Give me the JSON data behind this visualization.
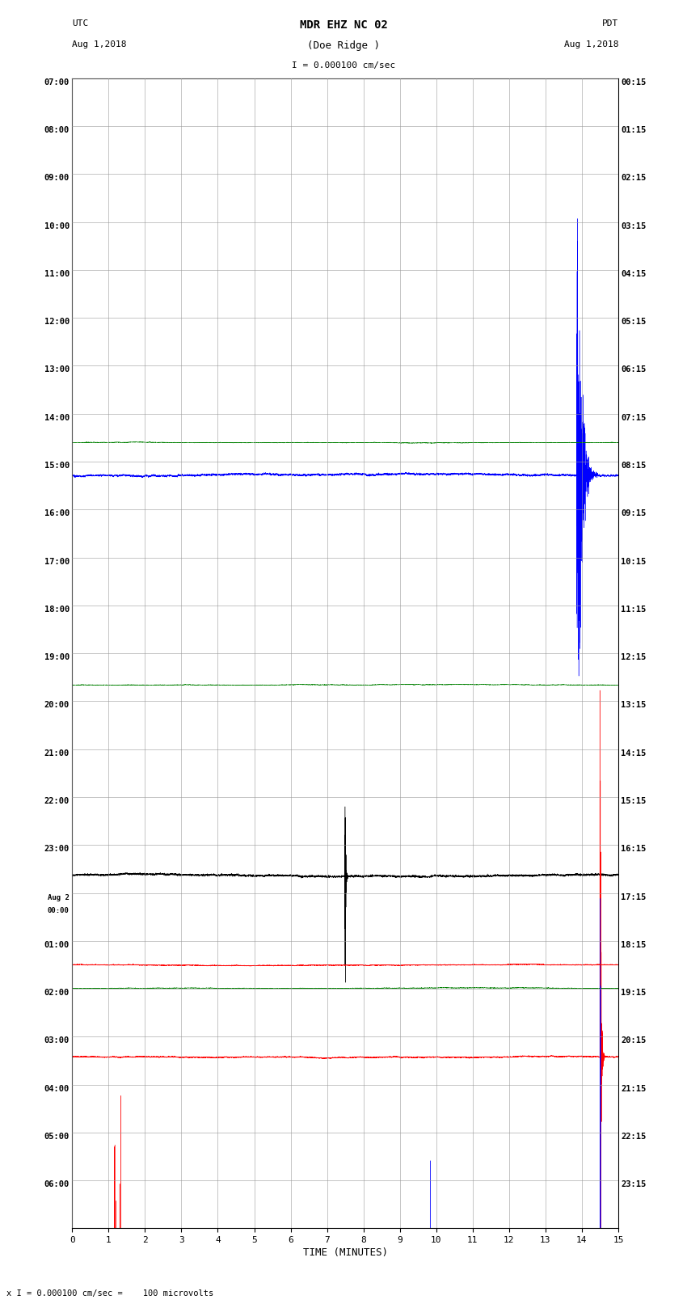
{
  "title_line1": "MDR EHZ NC 02",
  "title_line2": "(Doe Ridge )",
  "scale_label": "I = 0.000100 cm/sec",
  "left_label_line1": "UTC",
  "left_label_line2": "Aug 1,2018",
  "right_label_line1": "PDT",
  "right_label_line2": "Aug 1,2018",
  "bottom_note": "x I = 0.000100 cm/sec =    100 microvolts",
  "xlabel": "TIME (MINUTES)",
  "left_times": [
    "07:00",
    "08:00",
    "09:00",
    "10:00",
    "11:00",
    "12:00",
    "13:00",
    "14:00",
    "15:00",
    "16:00",
    "17:00",
    "18:00",
    "19:00",
    "20:00",
    "21:00",
    "22:00",
    "23:00",
    "Aug 2\n00:00",
    "01:00",
    "02:00",
    "03:00",
    "04:00",
    "05:00",
    "06:00"
  ],
  "right_times": [
    "00:15",
    "01:15",
    "02:15",
    "03:15",
    "04:15",
    "05:15",
    "06:15",
    "07:15",
    "08:15",
    "09:15",
    "10:15",
    "11:15",
    "12:15",
    "13:15",
    "14:15",
    "15:15",
    "16:15",
    "17:15",
    "18:15",
    "19:15",
    "20:15",
    "21:15",
    "22:15",
    "23:15"
  ],
  "n_rows": 24,
  "n_cols": 4,
  "colors": [
    "black",
    "red",
    "blue",
    "green"
  ],
  "bg_color": "#ffffff",
  "grid_color": "#aaaaaa",
  "fig_width": 8.5,
  "fig_height": 16.13,
  "dpi": 100,
  "x_ticks": [
    0,
    1,
    2,
    3,
    4,
    5,
    6,
    7,
    8,
    9,
    10,
    11,
    12,
    13,
    14,
    15
  ],
  "x_lim": [
    0,
    15
  ],
  "seed": 42
}
